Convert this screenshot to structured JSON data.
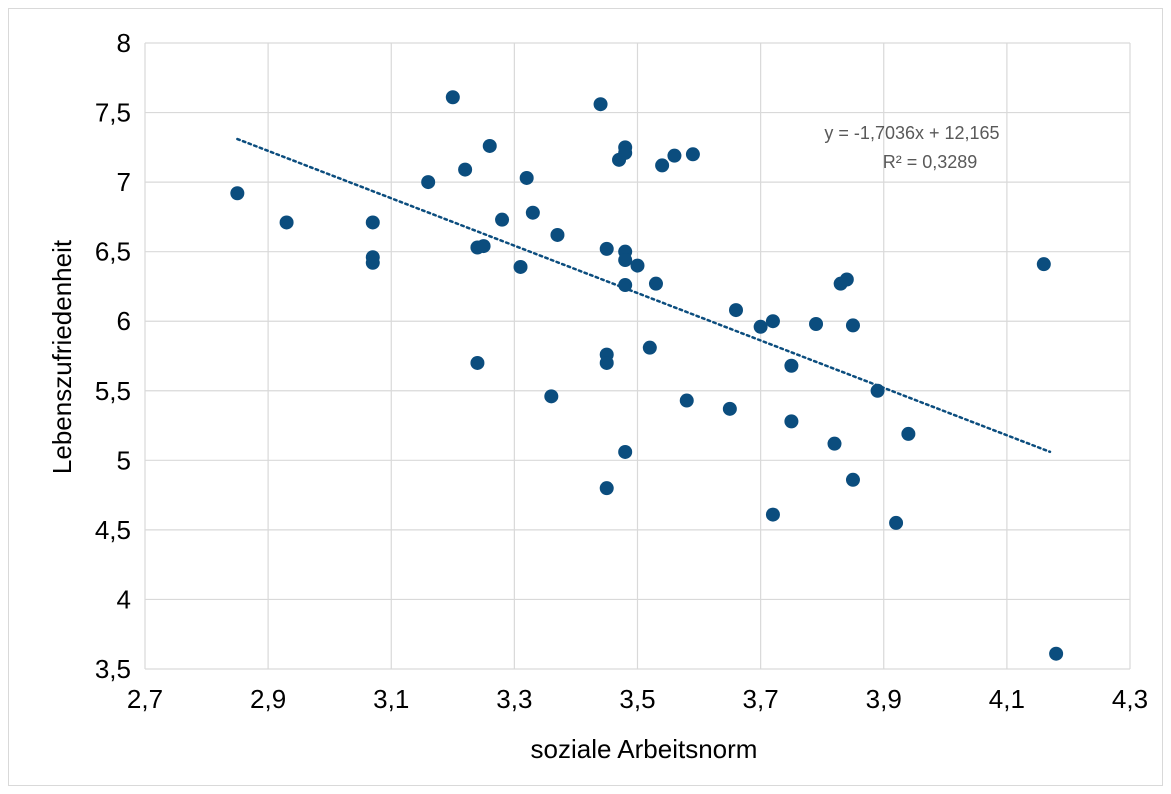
{
  "chart_data": {
    "type": "scatter",
    "xlabel": "soziale Arbeitsnorm",
    "ylabel": "Lebenszufriedenheit",
    "xlim": [
      2.7,
      4.3
    ],
    "ylim": [
      3.5,
      8
    ],
    "x_ticks": [
      "2,7",
      "2,9",
      "3,1",
      "3,3",
      "3,5",
      "3,7",
      "3,9",
      "4,1",
      "4,3"
    ],
    "y_ticks": [
      "3,5",
      "4",
      "4,5",
      "5",
      "5,5",
      "6",
      "6,5",
      "7",
      "7,5",
      "8"
    ],
    "grid": true,
    "marker_color": "#0b4d7e",
    "trendline": {
      "style": "dotted",
      "slope": -1.7036,
      "intercept": 12.165,
      "x_range": [
        2.85,
        4.17
      ],
      "equation_label": "y = -1,7036x + 12,165",
      "r2_label": "R² = 0,3289"
    },
    "points": [
      [
        2.85,
        6.92
      ],
      [
        2.93,
        6.71
      ],
      [
        3.07,
        6.71
      ],
      [
        3.07,
        6.46
      ],
      [
        3.07,
        6.42
      ],
      [
        3.16,
        7.0
      ],
      [
        3.2,
        7.61
      ],
      [
        3.22,
        7.09
      ],
      [
        3.24,
        6.53
      ],
      [
        3.25,
        6.54
      ],
      [
        3.24,
        5.7
      ],
      [
        3.26,
        7.26
      ],
      [
        3.28,
        6.73
      ],
      [
        3.31,
        6.39
      ],
      [
        3.32,
        7.03
      ],
      [
        3.33,
        6.78
      ],
      [
        3.36,
        5.46
      ],
      [
        3.37,
        6.62
      ],
      [
        3.44,
        7.56
      ],
      [
        3.45,
        6.52
      ],
      [
        3.45,
        5.76
      ],
      [
        3.45,
        5.7
      ],
      [
        3.45,
        4.8
      ],
      [
        3.47,
        7.16
      ],
      [
        3.48,
        7.25
      ],
      [
        3.48,
        7.21
      ],
      [
        3.48,
        6.5
      ],
      [
        3.48,
        6.44
      ],
      [
        3.48,
        6.26
      ],
      [
        3.48,
        5.06
      ],
      [
        3.5,
        6.4
      ],
      [
        3.52,
        5.81
      ],
      [
        3.53,
        6.27
      ],
      [
        3.54,
        7.12
      ],
      [
        3.56,
        7.19
      ],
      [
        3.58,
        5.43
      ],
      [
        3.59,
        7.2
      ],
      [
        3.65,
        5.37
      ],
      [
        3.66,
        6.08
      ],
      [
        3.7,
        5.96
      ],
      [
        3.72,
        6.0
      ],
      [
        3.72,
        4.61
      ],
      [
        3.75,
        5.68
      ],
      [
        3.75,
        5.28
      ],
      [
        3.79,
        5.98
      ],
      [
        3.82,
        5.12
      ],
      [
        3.83,
        6.27
      ],
      [
        3.84,
        6.3
      ],
      [
        3.85,
        5.97
      ],
      [
        3.85,
        4.86
      ],
      [
        3.89,
        5.5
      ],
      [
        3.92,
        4.55
      ],
      [
        3.94,
        5.19
      ],
      [
        4.16,
        6.41
      ],
      [
        4.18,
        3.61
      ]
    ]
  }
}
